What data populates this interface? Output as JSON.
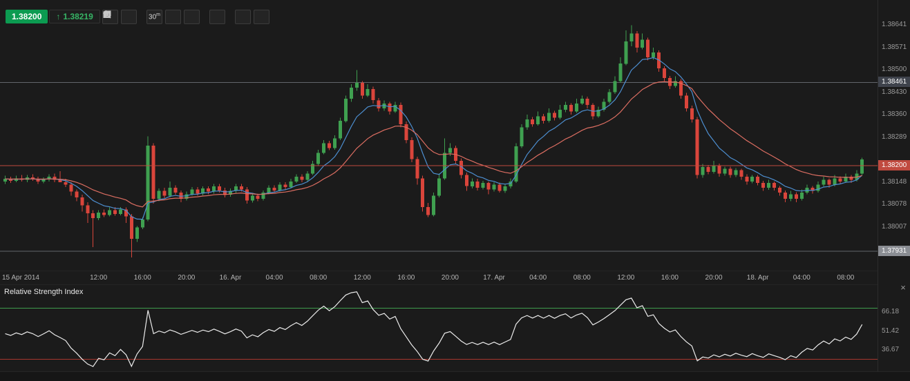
{
  "quote_bar": {
    "bid": "1.38200",
    "direction_arrow": "↑",
    "ask": "1.38219"
  },
  "toolbar": {
    "timeframe_value": "30",
    "timeframe_unit": "m"
  },
  "colors": {
    "background": "#1b1b1b",
    "candle_up": "#3fa050",
    "candle_down": "#da453b",
    "ma_fast": "#4d8fd1",
    "ma_slow": "#dd6e62",
    "level_line": "#62656b",
    "current_line": "#c04a3f",
    "bid_badge": "#0c9b51",
    "ask_text": "#36b465",
    "rsi_line": "#ececec",
    "rsi_upper_line": "#3f9e4d",
    "rsi_lower_line": "#a8372e"
  },
  "price_axis": {
    "ticks": [
      "1.38641",
      "1.38571",
      "1.38500",
      "1.38430",
      "1.38360",
      "1.38289",
      "1.38148",
      "1.38078",
      "1.38007"
    ],
    "badges": [
      {
        "label": "1.38461",
        "style": "dark"
      },
      {
        "label": "1.38200",
        "style": "current"
      },
      {
        "label": "1.37931",
        "style": "gray"
      }
    ]
  },
  "rsi_panel": {
    "title": "Relative Strength Index",
    "close_glyph": "×",
    "ticks": [
      "66.18",
      "51.42",
      "36.67"
    ]
  },
  "chart_data": {
    "type": "candlestick",
    "interval": "30m",
    "ylim": [
      1.3787,
      1.3872
    ],
    "price_base": 1.38,
    "price_unit": 1e-05,
    "levels": {
      "upper_level": 1.38461,
      "current_price": 1.382,
      "lower_level": 1.37931
    },
    "price_ticks": [
      1.38641,
      1.38571,
      1.385,
      1.3843,
      1.3836,
      1.38289,
      1.38148,
      1.38078,
      1.38007
    ],
    "time_labels": [
      "15 Apr 2014",
      "12:00",
      "16:00",
      "20:00",
      "16. Apr",
      "04:00",
      "08:00",
      "12:00",
      "16:00",
      "20:00",
      "17. Apr",
      "04:00",
      "08:00",
      "12:00",
      "16:00",
      "20:00",
      "18. Apr",
      "04:00",
      "08:00"
    ],
    "overlays": [
      {
        "name": "fast-ma",
        "color": "#4d8fd1",
        "period": 8
      },
      {
        "name": "slow-ma",
        "color": "#dd6e62",
        "period": 21
      }
    ],
    "rsi": {
      "title": "Relative Strength Index",
      "period": 14,
      "overbought_line": 70,
      "oversold_line": 30,
      "axis_ticks": [
        66.18,
        51.42,
        36.67
      ],
      "value_range": [
        20,
        88
      ]
    },
    "ohlc_pipettes": [
      [
        150,
        168,
        142,
        158
      ],
      [
        158,
        165,
        145,
        152
      ],
      [
        152,
        168,
        148,
        160
      ],
      [
        160,
        170,
        150,
        155
      ],
      [
        155,
        170,
        148,
        163
      ],
      [
        163,
        172,
        152,
        158
      ],
      [
        158,
        165,
        142,
        150
      ],
      [
        150,
        163,
        144,
        157
      ],
      [
        157,
        172,
        150,
        165
      ],
      [
        165,
        175,
        148,
        155
      ],
      [
        155,
        182,
        150,
        148
      ],
      [
        148,
        158,
        132,
        140
      ],
      [
        140,
        148,
        105,
        118
      ],
      [
        118,
        125,
        88,
        100
      ],
      [
        100,
        108,
        55,
        75
      ],
      [
        75,
        85,
        20,
        50
      ],
      [
        50,
        60,
        -56,
        35
      ],
      [
        35,
        60,
        28,
        52
      ],
      [
        52,
        62,
        38,
        45
      ],
      [
        45,
        68,
        40,
        60
      ],
      [
        60,
        70,
        42,
        48
      ],
      [
        48,
        70,
        44,
        62
      ],
      [
        62,
        68,
        20,
        40
      ],
      [
        40,
        48,
        -89,
        -30
      ],
      [
        -30,
        10,
        -40,
        5
      ],
      [
        5,
        38,
        0,
        30
      ],
      [
        30,
        292,
        25,
        262
      ],
      [
        262,
        270,
        80,
        95
      ],
      [
        95,
        128,
        88,
        120
      ],
      [
        120,
        130,
        98,
        105
      ],
      [
        105,
        150,
        100,
        130
      ],
      [
        130,
        138,
        108,
        115
      ],
      [
        115,
        122,
        85,
        95
      ],
      [
        95,
        118,
        90,
        110
      ],
      [
        110,
        132,
        105,
        125
      ],
      [
        125,
        132,
        105,
        112
      ],
      [
        112,
        135,
        106,
        128
      ],
      [
        128,
        135,
        110,
        118
      ],
      [
        118,
        142,
        112,
        135
      ],
      [
        135,
        142,
        115,
        122
      ],
      [
        122,
        130,
        100,
        108
      ],
      [
        108,
        128,
        102,
        120
      ],
      [
        120,
        142,
        114,
        135
      ],
      [
        135,
        142,
        118,
        125
      ],
      [
        125,
        132,
        80,
        90
      ],
      [
        90,
        112,
        84,
        105
      ],
      [
        105,
        112,
        88,
        95
      ],
      [
        95,
        122,
        90,
        115
      ],
      [
        115,
        138,
        110,
        130
      ],
      [
        130,
        138,
        115,
        122
      ],
      [
        122,
        148,
        118,
        140
      ],
      [
        140,
        148,
        125,
        132
      ],
      [
        132,
        158,
        128,
        150
      ],
      [
        150,
        172,
        145,
        165
      ],
      [
        165,
        172,
        148,
        155
      ],
      [
        155,
        182,
        150,
        175
      ],
      [
        175,
        215,
        170,
        205
      ],
      [
        205,
        250,
        200,
        240
      ],
      [
        240,
        280,
        235,
        270
      ],
      [
        270,
        278,
        248,
        255
      ],
      [
        255,
        295,
        250,
        285
      ],
      [
        285,
        350,
        280,
        340
      ],
      [
        340,
        420,
        335,
        410
      ],
      [
        410,
        455,
        400,
        445
      ],
      [
        445,
        500,
        435,
        460
      ],
      [
        460,
        465,
        410,
        420
      ],
      [
        420,
        455,
        415,
        440
      ],
      [
        440,
        448,
        395,
        405
      ],
      [
        405,
        412,
        370,
        380
      ],
      [
        380,
        405,
        372,
        395
      ],
      [
        395,
        400,
        360,
        370
      ],
      [
        370,
        400,
        365,
        390
      ],
      [
        390,
        398,
        320,
        330
      ],
      [
        330,
        338,
        270,
        280
      ],
      [
        280,
        288,
        210,
        220
      ],
      [
        220,
        228,
        140,
        160
      ],
      [
        160,
        168,
        55,
        70
      ],
      [
        70,
        82,
        38,
        45
      ],
      [
        45,
        115,
        40,
        105
      ],
      [
        105,
        175,
        100,
        160
      ],
      [
        160,
        285,
        155,
        240
      ],
      [
        240,
        270,
        230,
        255
      ],
      [
        255,
        262,
        205,
        215
      ],
      [
        215,
        222,
        160,
        170
      ],
      [
        170,
        178,
        120,
        135
      ],
      [
        135,
        160,
        128,
        150
      ],
      [
        150,
        158,
        122,
        130
      ],
      [
        130,
        152,
        125,
        145
      ],
      [
        145,
        150,
        110,
        125
      ],
      [
        125,
        148,
        118,
        140
      ],
      [
        140,
        146,
        115,
        120
      ],
      [
        120,
        142,
        114,
        135
      ],
      [
        135,
        160,
        128,
        150
      ],
      [
        150,
        270,
        145,
        260
      ],
      [
        260,
        330,
        255,
        320
      ],
      [
        320,
        360,
        312,
        345
      ],
      [
        345,
        352,
        322,
        330
      ],
      [
        330,
        370,
        325,
        355
      ],
      [
        355,
        362,
        332,
        340
      ],
      [
        340,
        380,
        335,
        365
      ],
      [
        365,
        372,
        342,
        350
      ],
      [
        350,
        390,
        345,
        375
      ],
      [
        375,
        400,
        368,
        390
      ],
      [
        390,
        396,
        360,
        370
      ],
      [
        370,
        410,
        365,
        395
      ],
      [
        395,
        420,
        390,
        410
      ],
      [
        410,
        416,
        380,
        390
      ],
      [
        390,
        396,
        345,
        355
      ],
      [
        355,
        385,
        350,
        375
      ],
      [
        375,
        410,
        370,
        400
      ],
      [
        400,
        440,
        395,
        430
      ],
      [
        430,
        480,
        425,
        465
      ],
      [
        465,
        540,
        460,
        520
      ],
      [
        520,
        625,
        515,
        590
      ],
      [
        590,
        641,
        575,
        615
      ],
      [
        615,
        622,
        555,
        570
      ],
      [
        570,
        615,
        565,
        595
      ],
      [
        595,
        602,
        530,
        540
      ],
      [
        540,
        570,
        532,
        555
      ],
      [
        555,
        562,
        495,
        505
      ],
      [
        505,
        512,
        465,
        475
      ],
      [
        475,
        482,
        440,
        450
      ],
      [
        450,
        480,
        445,
        465
      ],
      [
        465,
        472,
        410,
        420
      ],
      [
        420,
        428,
        370,
        380
      ],
      [
        380,
        388,
        335,
        345
      ],
      [
        345,
        352,
        160,
        170
      ],
      [
        170,
        205,
        162,
        195
      ],
      [
        195,
        202,
        172,
        180
      ],
      [
        180,
        215,
        175,
        200
      ],
      [
        200,
        206,
        165,
        175
      ],
      [
        175,
        196,
        168,
        190
      ],
      [
        190,
        196,
        162,
        170
      ],
      [
        170,
        192,
        164,
        185
      ],
      [
        185,
        190,
        155,
        165
      ],
      [
        165,
        172,
        140,
        150
      ],
      [
        150,
        170,
        144,
        165
      ],
      [
        165,
        170,
        138,
        145
      ],
      [
        145,
        152,
        120,
        130
      ],
      [
        130,
        155,
        124,
        145
      ],
      [
        145,
        150,
        122,
        130
      ],
      [
        130,
        136,
        105,
        115
      ],
      [
        115,
        122,
        85,
        95
      ],
      [
        95,
        120,
        88,
        110
      ],
      [
        110,
        116,
        85,
        95
      ],
      [
        95,
        125,
        90,
        115
      ],
      [
        115,
        140,
        110,
        130
      ],
      [
        130,
        136,
        112,
        120
      ],
      [
        120,
        150,
        115,
        140
      ],
      [
        140,
        165,
        134,
        155
      ],
      [
        155,
        160,
        130,
        140
      ],
      [
        140,
        170,
        135,
        160
      ],
      [
        160,
        166,
        142,
        150
      ],
      [
        150,
        175,
        145,
        165
      ],
      [
        165,
        170,
        145,
        155
      ],
      [
        155,
        185,
        150,
        175
      ],
      [
        175,
        225,
        170,
        219
      ]
    ]
  }
}
